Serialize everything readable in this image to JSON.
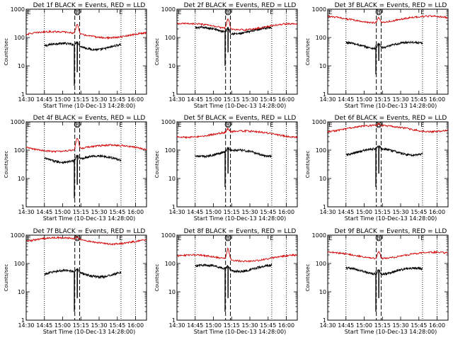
{
  "figure": {
    "background": "#ffffff",
    "colors": {
      "events": "#000000",
      "lld": "#d40000"
    }
  },
  "chart_data": [
    {
      "type": "line",
      "title": "Det 1f BLACK = Events, RED = LLD",
      "xlabel": "Start Time (10-Dec-13 14:28:00)",
      "ylabel": "Counts/sec",
      "yscale": "log",
      "ylim": [
        1,
        1000
      ],
      "xlim_minutes": [
        14.5,
        16.15
      ],
      "xticks": [
        "14:30",
        "14:45",
        "15:00",
        "15:15",
        "15:30",
        "15:45",
        "16:00"
      ],
      "yticks": [
        "1",
        "10",
        "100",
        "1000"
      ],
      "markers": {
        "E_start": "E",
        "B": "B",
        "E_end": "E"
      },
      "marker_times": [
        "14:30",
        "15:12",
        "15:48"
      ],
      "dotted_times": [
        "14:45",
        "15:48",
        "16:00"
      ],
      "dashed_times": [
        "15:10",
        "15:14"
      ],
      "series": [
        {
          "name": "Events",
          "color": "#000000",
          "base": 50,
          "peak": 70,
          "dip": 2
        },
        {
          "name": "LLD",
          "color": "#d40000",
          "base": 130,
          "peak": 300,
          "dip": null
        }
      ]
    },
    {
      "type": "line",
      "title": "Det 2f BLACK = Events, RED = LLD",
      "xlabel": "Start Time (10-Dec-13 14:28:00)",
      "ylabel": "Counts/sec",
      "yscale": "log",
      "ylim": [
        1,
        1000
      ],
      "xlim_minutes": [
        14.5,
        16.15
      ],
      "xticks": [
        "14:30",
        "14:45",
        "15:00",
        "15:15",
        "15:30",
        "15:45",
        "16:00"
      ],
      "yticks": [
        "1",
        "10",
        "100",
        "1000"
      ],
      "markers": {
        "E_start": "E",
        "B": "B",
        "E_end": "E"
      },
      "marker_times": [
        "14:30",
        "15:12",
        "15:48"
      ],
      "dotted_times": [
        "14:45",
        "15:48",
        "16:00"
      ],
      "dashed_times": [
        "15:10",
        "15:14"
      ],
      "series": [
        {
          "name": "Events",
          "color": "#000000",
          "base": 180,
          "peak": 260,
          "dip": 10
        },
        {
          "name": "LLD",
          "color": "#d40000",
          "base": 250,
          "peak": 500,
          "dip": null
        }
      ]
    },
    {
      "type": "line",
      "title": "Det 3f BLACK = Events, RED = LLD",
      "xlabel": "Start Time (10-Dec-13 14:28:00)",
      "ylabel": "Counts/sec",
      "yscale": "log",
      "ylim": [
        1,
        1000
      ],
      "xlim_minutes": [
        14.5,
        16.15
      ],
      "xticks": [
        "14:30",
        "14:45",
        "15:00",
        "15:15",
        "15:30",
        "15:45",
        "16:00"
      ],
      "yticks": [
        "1",
        "10",
        "100",
        "1000"
      ],
      "markers": {
        "E_start": "E",
        "B": "B",
        "E_end": "E"
      },
      "marker_times": [
        "14:30",
        "15:12",
        "15:48"
      ],
      "dotted_times": [
        "14:45",
        "15:48",
        "16:00"
      ],
      "dashed_times": [
        "15:10",
        "15:14"
      ],
      "series": [
        {
          "name": "Events",
          "color": "#000000",
          "base": 55,
          "peak": 75,
          "dip": 5
        },
        {
          "name": "LLD",
          "color": "#d40000",
          "base": 450,
          "peak": 600,
          "dip": null
        }
      ]
    },
    {
      "type": "line",
      "title": "Det 4f BLACK = Events, RED = LLD",
      "xlabel": "Start Time (10-Dec-13 14:28:00)",
      "ylabel": "Counts/sec",
      "yscale": "log",
      "ylim": [
        1,
        1000
      ],
      "xlim_minutes": [
        14.5,
        16.15
      ],
      "xticks": [
        "14:30",
        "14:45",
        "15:00",
        "15:15",
        "15:30",
        "15:45",
        "16:00"
      ],
      "yticks": [
        "1",
        "10",
        "100",
        "1000"
      ],
      "markers": {
        "E_start": "E",
        "B": "B",
        "E_end": "E"
      },
      "marker_times": [
        "14:30",
        "15:12",
        "15:48"
      ],
      "dotted_times": [
        "14:45",
        "15:48",
        "16:00"
      ],
      "dashed_times": [
        "15:10",
        "15:14"
      ],
      "series": [
        {
          "name": "Events",
          "color": "#000000",
          "base": 50,
          "peak": 70,
          "dip": 2
        },
        {
          "name": "LLD",
          "color": "#d40000",
          "base": 120,
          "peak": 280,
          "dip": null
        }
      ]
    },
    {
      "type": "line",
      "title": "Det 5f BLACK = Events, RED = LLD",
      "xlabel": "Start Time (10-Dec-13 14:28:00)",
      "ylabel": "Counts/sec",
      "yscale": "log",
      "ylim": [
        1,
        1000
      ],
      "xlim_minutes": [
        14.5,
        16.15
      ],
      "xticks": [
        "14:30",
        "14:45",
        "15:00",
        "15:15",
        "15:30",
        "15:45",
        "16:00"
      ],
      "yticks": [
        "1",
        "10",
        "100",
        "1000"
      ],
      "markers": {
        "E_start": "E",
        "B": "B",
        "E_end": "E"
      },
      "marker_times": [
        "14:30",
        "15:12",
        "15:48"
      ],
      "dotted_times": [
        "14:45",
        "15:48",
        "16:00"
      ],
      "dashed_times": [
        "15:10",
        "15:14"
      ],
      "series": [
        {
          "name": "Events",
          "color": "#000000",
          "base": 80,
          "peak": 110,
          "dip": 5
        },
        {
          "name": "LLD",
          "color": "#d40000",
          "base": 380,
          "peak": 520,
          "dip": null
        }
      ]
    },
    {
      "type": "line",
      "title": "Det 6f BLACK = Events, RED = LLD",
      "xlabel": "Start Time (10-Dec-13 14:28:00)",
      "ylabel": "Counts/sec",
      "yscale": "log",
      "ylim": [
        1,
        1000
      ],
      "xlim_minutes": [
        14.5,
        16.15
      ],
      "xticks": [
        "14:30",
        "14:45",
        "15:00",
        "15:15",
        "15:30",
        "15:45",
        "16:00"
      ],
      "yticks": [
        "1",
        "10",
        "100",
        "1000"
      ],
      "markers": {
        "E_start": "E",
        "B": "B",
        "E_end": "E"
      },
      "marker_times": [
        "14:30",
        "15:12",
        "15:48"
      ],
      "dotted_times": [
        "14:45",
        "15:48",
        "16:00"
      ],
      "dashed_times": [
        "15:10",
        "15:14"
      ],
      "series": [
        {
          "name": "Events",
          "color": "#000000",
          "base": 90,
          "peak": 120,
          "dip": 5
        },
        {
          "name": "LLD",
          "color": "#d40000",
          "base": 600,
          "peak": 700,
          "dip": null
        }
      ]
    },
    {
      "type": "line",
      "title": "Det 7f BLACK = Events, RED = LLD",
      "xlabel": "Start Time (10-Dec-13 14:28:00)",
      "ylabel": "Counts/sec",
      "yscale": "log",
      "ylim": [
        1,
        1000
      ],
      "xlim_minutes": [
        14.5,
        16.15
      ],
      "xticks": [
        "14:30",
        "14:45",
        "15:00",
        "15:15",
        "15:30",
        "15:45",
        "16:00"
      ],
      "yticks": [
        "1",
        "10",
        "100",
        "1000"
      ],
      "markers": {
        "E_start": "E",
        "B": "B",
        "E_end": "E"
      },
      "marker_times": [
        "14:30",
        "15:12",
        "15:48"
      ],
      "dotted_times": [
        "14:45",
        "15:48",
        "16:00"
      ],
      "dashed_times": [
        "15:10",
        "15:14"
      ],
      "series": [
        {
          "name": "Events",
          "color": "#000000",
          "base": 45,
          "peak": 60,
          "dip": 2
        },
        {
          "name": "LLD",
          "color": "#d40000",
          "base": 650,
          "peak": 800,
          "dip": null
        }
      ]
    },
    {
      "type": "line",
      "title": "Det 8f BLACK = Events, RED = LLD",
      "xlabel": "Start Time (10-Dec-13 14:28:00)",
      "ylabel": "Counts/sec",
      "yscale": "log",
      "ylim": [
        1,
        1000
      ],
      "xlim_minutes": [
        14.5,
        16.15
      ],
      "xticks": [
        "14:30",
        "14:45",
        "15:00",
        "15:15",
        "15:30",
        "15:45",
        "16:00"
      ],
      "yticks": [
        "1",
        "10",
        "100",
        "1000"
      ],
      "markers": {
        "E_start": "E",
        "B": "B",
        "E_end": "E"
      },
      "marker_times": [
        "14:30",
        "15:12",
        "15:48"
      ],
      "dotted_times": [
        "14:45",
        "15:48",
        "16:00"
      ],
      "dashed_times": [
        "15:10",
        "15:14"
      ],
      "series": [
        {
          "name": "Events",
          "color": "#000000",
          "base": 70,
          "peak": 90,
          "dip": 2
        },
        {
          "name": "LLD",
          "color": "#d40000",
          "base": 160,
          "peak": 350,
          "dip": null
        }
      ]
    },
    {
      "type": "line",
      "title": "Det 9f BLACK = Events, RED = LLD",
      "xlabel": "Start Time (10-Dec-13 14:28:00)",
      "ylabel": "Counts/sec",
      "yscale": "log",
      "ylim": [
        1,
        1000
      ],
      "xlim_minutes": [
        14.5,
        16.15
      ],
      "xticks": [
        "14:30",
        "14:45",
        "15:00",
        "15:15",
        "15:30",
        "15:45",
        "16:00"
      ],
      "yticks": [
        "1",
        "10",
        "100",
        "1000"
      ],
      "markers": {
        "E_start": "E",
        "B": "B",
        "E_end": "E"
      },
      "marker_times": [
        "14:30",
        "15:12",
        "15:48"
      ],
      "dotted_times": [
        "14:45",
        "15:48",
        "16:00"
      ],
      "dashed_times": [
        "15:10",
        "15:14"
      ],
      "series": [
        {
          "name": "Events",
          "color": "#000000",
          "base": 55,
          "peak": 75,
          "dip": 2
        },
        {
          "name": "LLD",
          "color": "#d40000",
          "base": 200,
          "peak": 320,
          "dip": null
        }
      ]
    }
  ]
}
